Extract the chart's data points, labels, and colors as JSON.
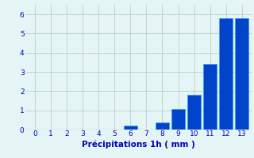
{
  "hours": [
    0,
    1,
    2,
    3,
    4,
    5,
    6,
    7,
    8,
    9,
    10,
    11,
    12,
    13
  ],
  "values": [
    0,
    0,
    0,
    0,
    0,
    0,
    0.2,
    0,
    0.35,
    1.05,
    1.8,
    3.4,
    5.8,
    5.8
  ],
  "bar_color": "#0044cc",
  "bar_edge_color": "#3399ff",
  "background_color": "#e5f5f5",
  "grid_color": "#b0c8c8",
  "xlabel": "Précipitations 1h ( mm )",
  "xlabel_color": "#0000bb",
  "tick_color": "#0000bb",
  "ylim": [
    0,
    6.5
  ],
  "xlim": [
    -0.6,
    13.6
  ],
  "yticks": [
    0,
    1,
    2,
    3,
    4,
    5,
    6
  ],
  "xticks": [
    0,
    1,
    2,
    3,
    4,
    5,
    6,
    7,
    8,
    9,
    10,
    11,
    12,
    13
  ]
}
